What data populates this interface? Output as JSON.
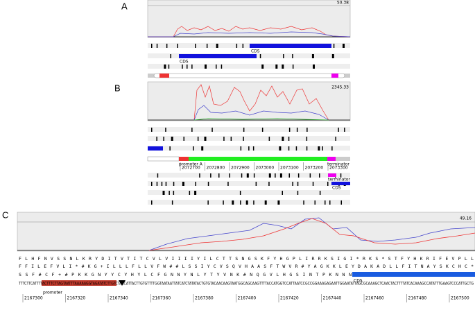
{
  "panels": {
    "a": {
      "label": "A",
      "max": "50.38",
      "features": [
        "CDS",
        "CDS"
      ]
    },
    "b": {
      "label": "B",
      "max": "2345.33",
      "positions": [
        "2072700",
        "2072800",
        "2072900",
        "2073000",
        "2073100",
        "2073200",
        "2073300"
      ],
      "features": [
        "promoter A",
        "terminator",
        "terminator",
        "CDS"
      ]
    },
    "c": {
      "label": "C",
      "max": "49.16",
      "frames": [
        "F L H F N V S S N L K R Y D I T V T I T C V L V I I I I Y I L C T T S N G S K F Y H G P L I R R K S I G I * R K S * S T F Y H K R I F E V P L L",
        "F F I L E F V L I * # K G + I L L L F L L V F W # # L S S I Y C V S Q V H A A S F T W V R # Y A G K K L E Y D A K A D L L F I T N A Y S K C H C *",
        "S S F # C F + # P K K G N Y Y C Y H Y L C F G N N Y N L Y T Y V N K # N Q G V L H G S I N T P K N N N"
      ],
      "sequence": "TTTCTTCATTTTACTTTCTTAGTAATTTAAAAAGGTAGATATCTTGTCTACCATTACTTGTGTTTTGGTAATAATTATCATCTATATACTGTGTACAACAAGTAATGGCAGCAAGTTTTACCATGGTCCATTAATCCGCCGGAAAGAGAATTGGAATATTAGCGCAAAGCTCAACTACTTTTATCACAAAGCCATATTTGAAGTCCCATTGCTG",
      "features": [
        "promoter",
        "CDS"
      ],
      "positions": [
        "2167300",
        "2167320",
        "2167340",
        "2167360",
        "2167380",
        "2167400",
        "2167420",
        "2167440",
        "2167460",
        "2167480",
        "2167500"
      ]
    }
  }
}
